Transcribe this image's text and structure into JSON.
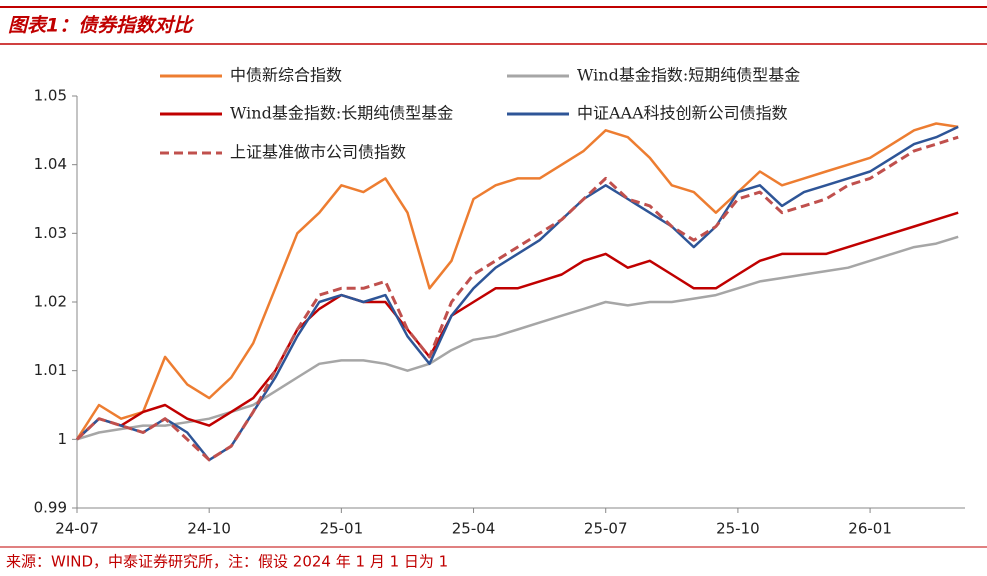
{
  "chart_data": {
    "type": "line",
    "title": "图表1：债券指数对比",
    "source": "来源：WIND，中泰证券研究所，注：假设 2024 年 1 月 1 日为 1",
    "x": [
      "24-07",
      null,
      null,
      null,
      null,
      null,
      "24-10",
      null,
      null,
      null,
      null,
      null,
      "25-01",
      null,
      null,
      null,
      null,
      null,
      "25-04",
      null,
      null,
      null,
      null,
      null,
      "25-07",
      null,
      null,
      null,
      null,
      null,
      "25-10",
      null,
      null,
      null,
      null,
      null,
      "26-01",
      null,
      null,
      null,
      null
    ],
    "ylim": [
      0.99,
      1.05
    ],
    "yticks": [
      0.99,
      1,
      1.01,
      1.02,
      1.03,
      1.04,
      1.05
    ],
    "series": [
      {
        "name": "中债新综合指数",
        "color": "#ed7d31",
        "dash": false,
        "values": [
          1.0,
          1.005,
          1.003,
          1.004,
          1.012,
          1.008,
          1.006,
          1.009,
          1.014,
          1.022,
          1.03,
          1.033,
          1.037,
          1.036,
          1.038,
          1.033,
          1.022,
          1.026,
          1.035,
          1.037,
          1.038,
          1.038,
          1.04,
          1.042,
          1.045,
          1.044,
          1.041,
          1.037,
          1.036,
          1.033,
          1.036,
          1.039,
          1.037,
          1.038,
          1.039,
          1.04,
          1.041,
          1.043,
          1.045,
          1.046,
          1.0455
        ]
      },
      {
        "name": "Wind基金指数:短期纯债型基金",
        "color": "#a6a6a6",
        "dash": false,
        "values": [
          1.0,
          1.001,
          1.0015,
          1.002,
          1.002,
          1.0025,
          1.003,
          1.004,
          1.005,
          1.007,
          1.009,
          1.011,
          1.0115,
          1.0115,
          1.011,
          1.01,
          1.011,
          1.013,
          1.0145,
          1.015,
          1.016,
          1.017,
          1.018,
          1.019,
          1.02,
          1.0195,
          1.02,
          1.02,
          1.0205,
          1.021,
          1.022,
          1.023,
          1.0235,
          1.024,
          1.0245,
          1.025,
          1.026,
          1.027,
          1.028,
          1.0285,
          1.0295
        ]
      },
      {
        "name": "Wind基金指数:长期纯债型基金",
        "color": "#c00000",
        "dash": false,
        "values": [
          1.0,
          1.003,
          1.002,
          1.004,
          1.005,
          1.003,
          1.002,
          1.004,
          1.006,
          1.01,
          1.016,
          1.019,
          1.021,
          1.02,
          1.02,
          1.016,
          1.012,
          1.018,
          1.02,
          1.022,
          1.022,
          1.023,
          1.024,
          1.026,
          1.027,
          1.025,
          1.026,
          1.024,
          1.022,
          1.022,
          1.024,
          1.026,
          1.027,
          1.027,
          1.027,
          1.028,
          1.029,
          1.03,
          1.031,
          1.032,
          1.033
        ]
      },
      {
        "name": "中证AAA科技创新公司债指数",
        "color": "#2e5597",
        "dash": false,
        "values": [
          1.0,
          1.003,
          1.002,
          1.001,
          1.003,
          1.001,
          0.997,
          0.999,
          1.004,
          1.009,
          1.015,
          1.02,
          1.021,
          1.02,
          1.021,
          1.015,
          1.011,
          1.018,
          1.022,
          1.025,
          1.027,
          1.029,
          1.032,
          1.035,
          1.037,
          1.035,
          1.033,
          1.031,
          1.028,
          1.031,
          1.036,
          1.037,
          1.034,
          1.036,
          1.037,
          1.038,
          1.039,
          1.041,
          1.043,
          1.044,
          1.0455
        ]
      },
      {
        "name": "上证基准做市公司债指数",
        "color": "#c0504d",
        "dash": true,
        "values": [
          1.0,
          1.003,
          1.002,
          1.001,
          1.003,
          1.0,
          0.997,
          0.999,
          1.004,
          1.01,
          1.016,
          1.021,
          1.022,
          1.022,
          1.023,
          1.016,
          1.012,
          1.02,
          1.024,
          1.026,
          1.028,
          1.03,
          1.032,
          1.035,
          1.038,
          1.035,
          1.034,
          1.031,
          1.029,
          1.031,
          1.035,
          1.036,
          1.033,
          1.034,
          1.035,
          1.037,
          1.038,
          1.04,
          1.042,
          1.043,
          1.044
        ]
      }
    ]
  }
}
